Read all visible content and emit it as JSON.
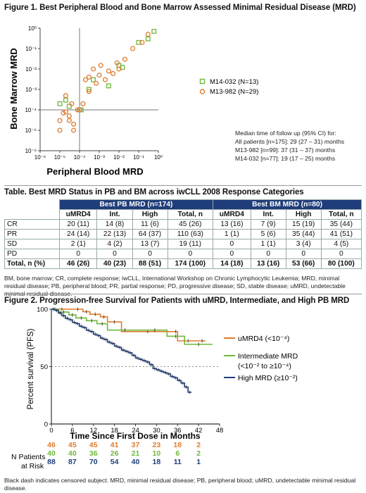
{
  "figure1": {
    "title": "Figure 1. Best Peripheral Blood and Bone Marrow Assessed Minimal Residual Disease (MRD)",
    "xlabel": "Peripheral Blood MRD",
    "ylabel": "Bone Marrow MRD",
    "xticks": [
      "10⁻⁶",
      "10⁻⁵",
      "10⁻⁴",
      "10⁻³",
      "10⁻²",
      "10⁻¹",
      "10⁰"
    ],
    "yticks": [
      "10⁰",
      "10⁻¹",
      "10⁻²",
      "10⁻³",
      "10⁻⁴",
      "10⁻⁵",
      "10⁻⁶"
    ],
    "legend": [
      "M14-032 (N=13)",
      "M13-982 (N=29)"
    ],
    "median": {
      "header": "Median time of follow up (95% CI) for:",
      "lines": [
        "All patients [n=175]: 29 (27 – 31) months",
        "M13-982 [n=99]: 37 (31 – 37) months",
        "M14-032 [n=77]: 19 (17 – 25) months"
      ]
    }
  },
  "table": {
    "title": "Table. Best MRD Status in PB and BM across iwCLL 2008 Response Categories",
    "groups": [
      "Best PB MRD (n=174)",
      "Best BM MRD (n=80)"
    ],
    "subheaders": [
      "uMRD4",
      "Int.",
      "High",
      "Total, n",
      "uMRD4",
      "Int.",
      "High",
      "Total, n"
    ],
    "rows": [
      {
        "label": "CR",
        "cells": [
          "20 (11)",
          "14 (8)",
          "11 (6)",
          "45 (26)",
          "13 (16)",
          "7 (9)",
          "15 (19)",
          "35 (44)"
        ]
      },
      {
        "label": "PR",
        "cells": [
          "24 (14)",
          "22 (13)",
          "64 (37)",
          "110 (63)",
          "1 (1)",
          "5 (6)",
          "35 (44)",
          "41 (51)"
        ]
      },
      {
        "label": "SD",
        "cells": [
          "2 (1)",
          "4 (2)",
          "13 (7)",
          "19 (11)",
          "0",
          "1 (1)",
          "3 (4)",
          "4 (5)"
        ]
      },
      {
        "label": "PD",
        "cells": [
          "0",
          "0",
          "0",
          "0",
          "0",
          "0",
          "0",
          "0"
        ]
      }
    ],
    "total": {
      "label": "Total, n (%)",
      "cells": [
        "46 (26)",
        "40 (23)",
        "88 (51)",
        "174 (100)",
        "14 (18)",
        "13 (16)",
        "53 (66)",
        "80 (100)"
      ]
    },
    "footnote": "BM, bone marrow; CR, complete response; iwCLL, International Workshop on Chronic Lymphocytic Leukemia; MRD, minimal residual disease; PB, peripheral blood; PR, partial response; PD, progressive disease; SD, stable disease; uMRD, undetectable minimal residual disease."
  },
  "figure2": {
    "title": "Figure 2. Progression-free Survival for Patients with uMRD, Intermediate, and High PB MRD",
    "xlabel": "Time Since First Dose in Months",
    "ylabel": "Percent survival (PFS)",
    "legend": [
      "uMRD4 (<10⁻⁴)",
      "Intermediate MRD",
      "(<10⁻² to ≥10⁻⁴)",
      "High MRD (≥10⁻²)"
    ],
    "risk_label": [
      "N Patients",
      "at Risk"
    ],
    "risk_rows": [
      [
        "46",
        "45",
        "45",
        "41",
        "37",
        "23",
        "18",
        "2"
      ],
      [
        "40",
        "40",
        "36",
        "26",
        "21",
        "10",
        "6",
        "2"
      ],
      [
        "88",
        "87",
        "70",
        "54",
        "40",
        "18",
        "11",
        "1"
      ]
    ],
    "footnote": "Black dash indicates censored subject. MRD, minimal residual disease; PB, peripheral blood; uMRD, undetectable minimal residual disease."
  },
  "colors": {
    "orange": "#e07b2e",
    "green": "#6fb83a",
    "navy": "#1f3d7a"
  },
  "chart_data": [
    {
      "type": "scatter",
      "title": "Figure 1. Best Peripheral Blood and Bone Marrow Assessed Minimal Residual Disease (MRD)",
      "xlabel": "Peripheral Blood MRD",
      "ylabel": "Bone Marrow MRD",
      "xscale": "log",
      "yscale": "log",
      "xlim": [
        1e-06,
        1
      ],
      "ylim": [
        1e-06,
        1
      ],
      "reference_lines": {
        "x": 0.0001,
        "y": 0.0001
      },
      "series": [
        {
          "name": "M14-032 (N=13)",
          "marker": "square",
          "color": "#6fb83a",
          "x": [
            1e-05,
            2e-05,
            3e-05,
            0.0001,
            0.00012,
            0.0003,
            0.0005,
            0.003,
            0.01,
            0.015,
            0.1,
            0.3,
            0.6
          ],
          "y": [
            0.0002,
            0.0003,
            0.00015,
            0.0001,
            0.0001,
            0.001,
            0.003,
            0.0015,
            0.015,
            0.012,
            0.2,
            0.3,
            0.7
          ]
        },
        {
          "name": "M13-982 (N=29)",
          "marker": "circle",
          "color": "#e07b2e",
          "x": [
            1e-05,
            1e-05,
            1.5e-05,
            2e-05,
            2e-05,
            3e-05,
            3e-05,
            4e-05,
            5e-05,
            5e-05,
            8e-05,
            0.0001,
            0.00015,
            0.0002,
            0.0003,
            0.0003,
            0.0005,
            0.0007,
            0.001,
            0.0012,
            0.002,
            0.003,
            0.005,
            0.008,
            0.01,
            0.02,
            0.05,
            0.15,
            0.3
          ],
          "y": [
            1e-05,
            3e-05,
            7e-05,
            0.0005,
            8e-05,
            3e-05,
            5e-05,
            0.0002,
            1e-05,
            2e-05,
            0.0001,
            0.0001,
            0.0002,
            0.003,
            0.0008,
            0.004,
            0.01,
            0.002,
            0.005,
            0.015,
            0.003,
            0.008,
            0.006,
            0.02,
            0.01,
            0.03,
            0.1,
            0.2,
            0.5
          ]
        }
      ]
    },
    {
      "type": "line",
      "subtype": "kaplan-meier",
      "title": "Figure 2. Progression-free Survival for Patients with uMRD, Intermediate, and High PB MRD",
      "xlabel": "Time Since First Dose in Months",
      "ylabel": "Percent survival (PFS)",
      "xlim": [
        0,
        48
      ],
      "ylim": [
        0,
        100
      ],
      "xticks": [
        0,
        6,
        12,
        18,
        24,
        30,
        36,
        42,
        48
      ],
      "yticks": [
        0,
        50,
        100
      ],
      "reference_line_y": 50,
      "series": [
        {
          "name": "uMRD4 (<10⁻⁴)",
          "color": "#e07b2e",
          "x": [
            0,
            6,
            9,
            11,
            14,
            16,
            20,
            35,
            36,
            42,
            44
          ],
          "y": [
            100,
            100,
            97.8,
            95.6,
            93.3,
            88.9,
            80.5,
            80.5,
            72.4,
            72.4,
            72.4
          ]
        },
        {
          "name": "Intermediate MRD (<10⁻² to ≥10⁻⁴)",
          "color": "#6fb83a",
          "x": [
            0,
            2,
            5,
            7,
            10,
            13,
            16,
            26,
            33,
            38,
            46
          ],
          "y": [
            100,
            97.5,
            95,
            92.4,
            90,
            87.3,
            81.8,
            81.8,
            76.4,
            69.4,
            69.4
          ]
        },
        {
          "name": "High MRD (≥10⁻²)",
          "color": "#1f3d7a",
          "x": [
            0,
            1,
            2,
            3,
            4,
            5,
            6,
            7,
            8,
            9,
            10,
            11,
            12,
            13,
            14,
            15,
            16,
            17,
            18,
            19,
            20,
            21,
            22,
            23,
            24,
            25,
            26,
            27,
            28,
            29,
            30,
            31,
            32,
            33,
            34,
            35,
            36,
            37,
            38,
            39,
            40
          ],
          "y": [
            100,
            98.9,
            96.6,
            94.3,
            92,
            90.8,
            88.5,
            87.4,
            85.1,
            83.9,
            81.6,
            80.5,
            78.2,
            77,
            74.7,
            73.6,
            71.3,
            70.1,
            67.8,
            66.7,
            64.4,
            63.2,
            62.1,
            59.8,
            57.5,
            56.3,
            55.2,
            54,
            51.7,
            48.3,
            47.1,
            45.9,
            44.8,
            43.7,
            41.4,
            40.2,
            37.9,
            35.6,
            32.2,
            27.6,
            27.6
          ]
        }
      ],
      "at_risk": {
        "times": [
          0,
          6,
          12,
          18,
          24,
          30,
          36,
          42
        ],
        "uMRD4": [
          46,
          45,
          45,
          41,
          37,
          23,
          18,
          2
        ],
        "Intermediate": [
          40,
          40,
          36,
          26,
          21,
          10,
          6,
          2
        ],
        "High": [
          88,
          87,
          70,
          54,
          40,
          18,
          11,
          1
        ]
      }
    }
  ]
}
